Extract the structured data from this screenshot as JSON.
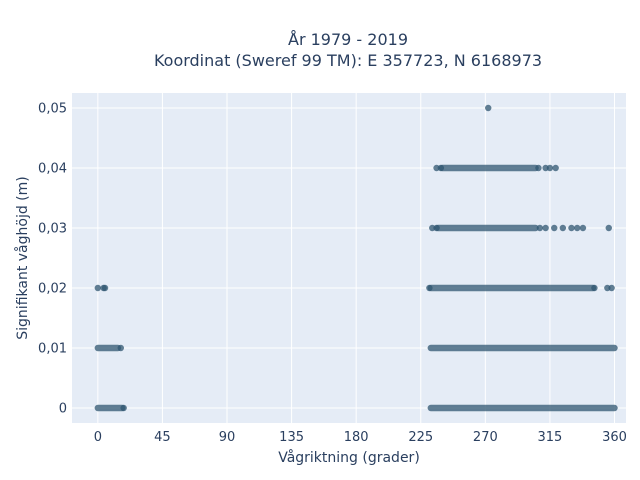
{
  "chart_data": {
    "type": "scatter",
    "title_lines": [
      "År 1979 - 2019",
      "Koordinat (Sweref 99 TM): E 357723, N 6168973"
    ],
    "xlabel": "Vågriktning (grader)",
    "ylabel": "Signifikant våghöjd (m)",
    "xlim": [
      -18,
      368
    ],
    "ylim": [
      -0.0025,
      0.0525
    ],
    "x_ticks": [
      0,
      45,
      90,
      135,
      180,
      225,
      270,
      315,
      360
    ],
    "x_tick_labels": [
      "0",
      "45",
      "90",
      "135",
      "180",
      "225",
      "270",
      "315",
      "360"
    ],
    "y_ticks": [
      0,
      0.01,
      0.02,
      0.03,
      0.04,
      0.05
    ],
    "y_tick_labels": [
      "0",
      "0,01",
      "0,02",
      "0,03",
      "0,04",
      "0,05"
    ],
    "grid": true,
    "colors": {
      "marker": "#2f5570",
      "plot_bg": "#e5ecf6",
      "text": "#2a3f5f"
    },
    "dense_bands": [
      {
        "y": 0,
        "x_from": 0,
        "x_to": 17
      },
      {
        "y": 0,
        "x_from": 232,
        "x_to": 360
      },
      {
        "y": 0.01,
        "x_from": 0,
        "x_to": 14
      },
      {
        "y": 0.01,
        "x_from": 232,
        "x_to": 360
      },
      {
        "y": 0.02,
        "x_from": 232,
        "x_to": 345
      },
      {
        "y": 0.03,
        "x_from": 237,
        "x_to": 305
      },
      {
        "y": 0.04,
        "x_from": 240,
        "x_to": 305
      }
    ],
    "points": [
      {
        "x": 0,
        "y": 0.02
      },
      {
        "x": 4,
        "y": 0.02
      },
      {
        "x": 5,
        "y": 0.02
      },
      {
        "x": 18,
        "y": 0
      },
      {
        "x": 16,
        "y": 0.01
      },
      {
        "x": 231,
        "y": 0.02
      },
      {
        "x": 346,
        "y": 0.02
      },
      {
        "x": 355,
        "y": 0.02
      },
      {
        "x": 358,
        "y": 0.02
      },
      {
        "x": 233,
        "y": 0.03
      },
      {
        "x": 236,
        "y": 0.03
      },
      {
        "x": 308,
        "y": 0.03
      },
      {
        "x": 312,
        "y": 0.03
      },
      {
        "x": 318,
        "y": 0.03
      },
      {
        "x": 324,
        "y": 0.03
      },
      {
        "x": 330,
        "y": 0.03
      },
      {
        "x": 334,
        "y": 0.03
      },
      {
        "x": 338,
        "y": 0.03
      },
      {
        "x": 356,
        "y": 0.03
      },
      {
        "x": 236,
        "y": 0.04
      },
      {
        "x": 239,
        "y": 0.04
      },
      {
        "x": 307,
        "y": 0.04
      },
      {
        "x": 312,
        "y": 0.04
      },
      {
        "x": 315,
        "y": 0.04
      },
      {
        "x": 319,
        "y": 0.04
      },
      {
        "x": 272,
        "y": 0.05
      }
    ]
  }
}
